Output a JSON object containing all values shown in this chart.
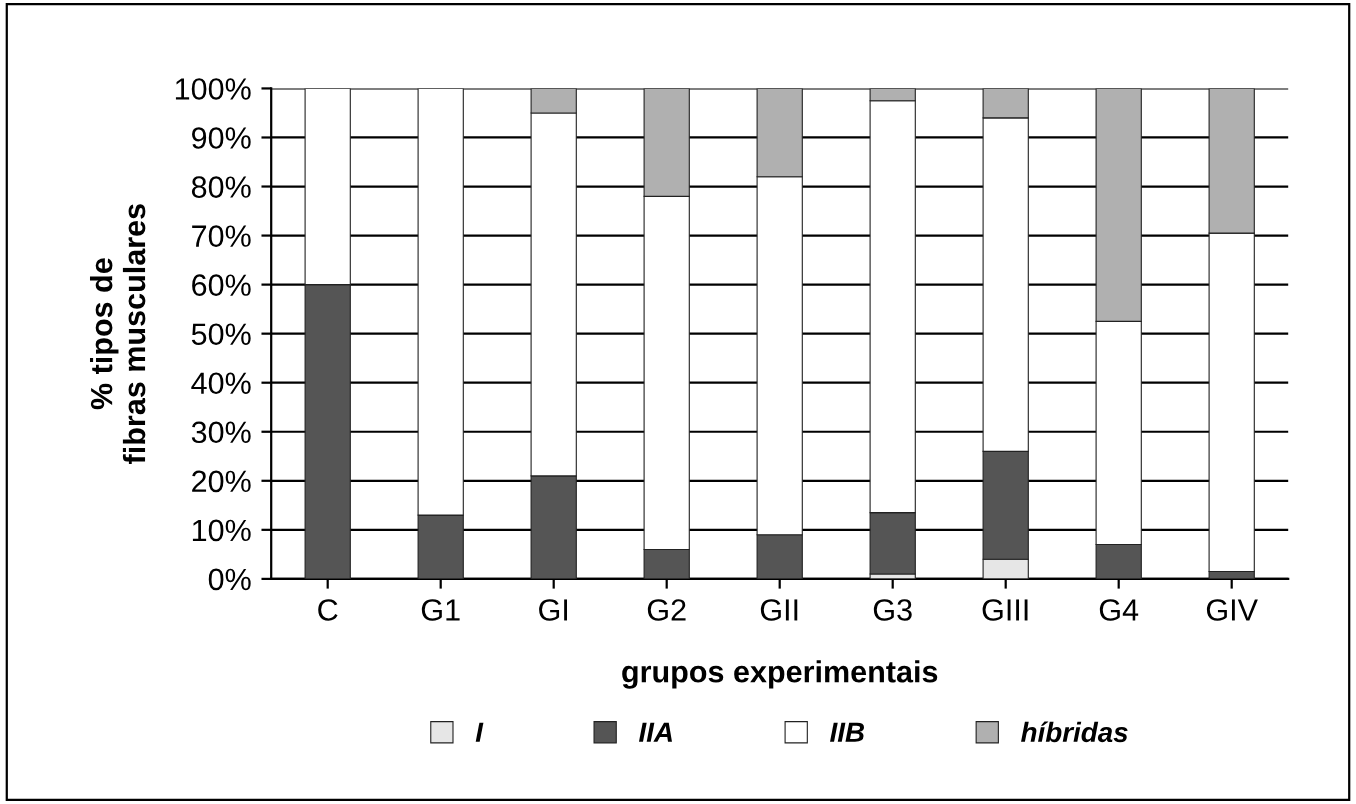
{
  "chart_data": {
    "type": "bar",
    "stacked": true,
    "xlabel": "grupos experimentais",
    "ylabel": "% tipos de\nfibras musculares",
    "categories": [
      "C",
      "G1",
      "GI",
      "G2",
      "GII",
      "G3",
      "GIII",
      "G4",
      "GIV"
    ],
    "series": [
      {
        "name": "I",
        "color": "#e6e6e6",
        "values": [
          0,
          0,
          0,
          0,
          0,
          1,
          4,
          0,
          0
        ]
      },
      {
        "name": "IIA",
        "color": "#555555",
        "values": [
          60,
          13,
          21,
          6,
          9,
          12.5,
          22,
          7,
          1.5
        ]
      },
      {
        "name": "IIB",
        "color": "#ffffff",
        "values": [
          40,
          87,
          74,
          72,
          73,
          84,
          68,
          45.5,
          69
        ]
      },
      {
        "name": "híbridas",
        "color": "#b0b0b0",
        "values": [
          0,
          0,
          5,
          22,
          18,
          2.5,
          6,
          47.5,
          29.5
        ]
      }
    ],
    "ylim": [
      0,
      100
    ],
    "yticks": [
      {
        "value": 0,
        "label": "0%"
      },
      {
        "value": 10,
        "label": "10%"
      },
      {
        "value": 20,
        "label": "20%"
      },
      {
        "value": 30,
        "label": "30%"
      },
      {
        "value": 40,
        "label": "40%"
      },
      {
        "value": 50,
        "label": "50%"
      },
      {
        "value": 60,
        "label": "60%"
      },
      {
        "value": 70,
        "label": "70%"
      },
      {
        "value": 80,
        "label": "80%"
      },
      {
        "value": 90,
        "label": "90%"
      },
      {
        "value": 100,
        "label": "100%"
      }
    ],
    "grid": "y",
    "legend": "bottom"
  }
}
